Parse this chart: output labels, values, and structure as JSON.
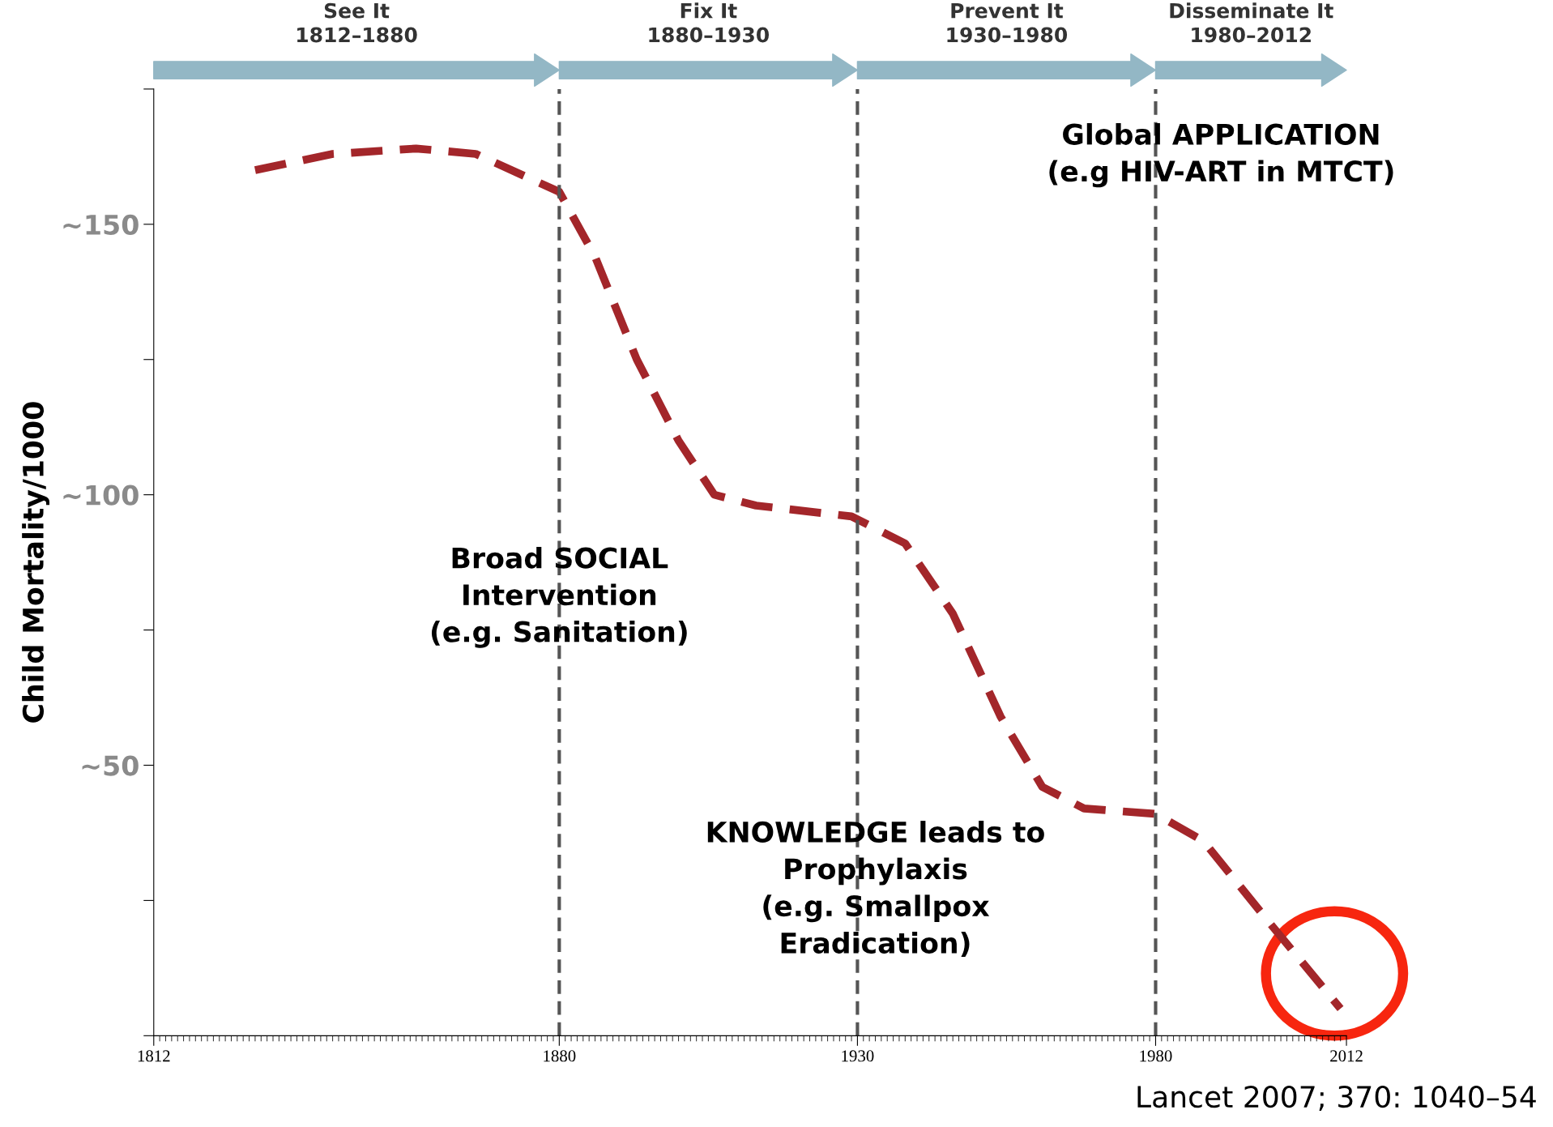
{
  "chart_data": {
    "type": "line",
    "ylabel": "Child Mortality/1000",
    "x": [
      1829,
      1842,
      1856,
      1866,
      1880,
      1886,
      1893,
      1900,
      1906,
      1913,
      1929,
      1938,
      1946,
      1954,
      1961,
      1968,
      1980,
      1988,
      1999,
      2011
    ],
    "series": [
      {
        "color": "#a3262a",
        "values": [
          160,
          163,
          164,
          163,
          156,
          144,
          125,
          110,
          100,
          98,
          96,
          91,
          78,
          59,
          46,
          42,
          41,
          36,
          21,
          5
        ]
      }
    ],
    "line_style": "dashed",
    "marker": "none",
    "grid": false,
    "legend": false,
    "xlim": [
      1812,
      2012
    ],
    "xticks": [
      1812,
      1880,
      1930,
      1980,
      2012
    ],
    "ylim": [
      0,
      175
    ],
    "yticks": [
      {
        "value": 0,
        "label": null
      },
      {
        "value": 25,
        "label": null
      },
      {
        "value": 50,
        "label": "~50"
      },
      {
        "value": 75,
        "label": null
      },
      {
        "value": 100,
        "label": "~100"
      },
      {
        "value": 125,
        "label": null
      },
      {
        "value": 150,
        "label": "~150"
      },
      {
        "value": 175,
        "label": null
      }
    ],
    "ref_lines": [
      {
        "axis": "x",
        "value": 1880,
        "color": "#555555",
        "line_style": "dashed"
      },
      {
        "axis": "x",
        "value": 1930,
        "color": "#555555",
        "line_style": "dashed"
      },
      {
        "axis": "x",
        "value": 1980,
        "color": "#555555",
        "line_style": "dashed"
      }
    ],
    "annotations": [
      "See It\n1812–1880",
      "Fix It\n1880–1930",
      "Prevent It\n1930–1980",
      "Disseminate It\n1980–2012",
      "Global APPLICATION\n(e.g HIV-ART in MTCT)",
      "Broad SOCIAL\nIntervention\n(e.g. Sanitation)",
      "KNOWLEDGE leads to\nProphylaxis\n(e.g. Smallpox\nEradication)",
      "Lancet 2007; 370: 1040–54"
    ]
  }
}
